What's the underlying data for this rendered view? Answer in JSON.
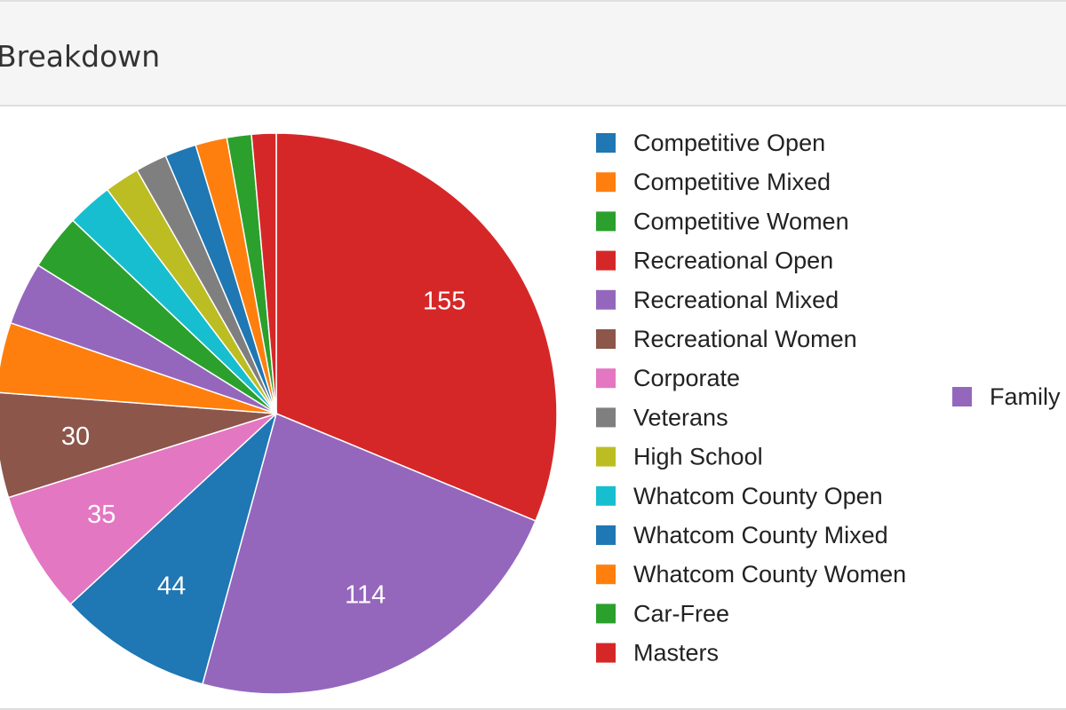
{
  "panel": {
    "title": "Breakdown"
  },
  "chart_data": {
    "type": "pie",
    "title": "Breakdown",
    "start_angle_deg": 0,
    "direction": "clockwise",
    "slices": [
      {
        "name": "Recreational Open",
        "value": 155,
        "color": "#d62728",
        "label": "155"
      },
      {
        "name": "Recreational Mixed",
        "value": 114,
        "color": "#9467bd",
        "label": "114"
      },
      {
        "name": "Competitive Open",
        "value": 44,
        "color": "#1f77b4",
        "label": "44"
      },
      {
        "name": "Corporate",
        "value": 35,
        "color": "#e377c2",
        "label": "35"
      },
      {
        "name": "Recreational Women",
        "value": 30,
        "color": "#8c564b",
        "label": "30"
      },
      {
        "name": "Competitive Mixed",
        "value": 20,
        "color": "#ff7f0e",
        "label": ""
      },
      {
        "name": "Family",
        "value": 18,
        "color": "#9467bd",
        "label": ""
      },
      {
        "name": "Competitive Women",
        "value": 16,
        "color": "#2ca02c",
        "label": ""
      },
      {
        "name": "Whatcom County Open",
        "value": 13,
        "color": "#17becf",
        "label": ""
      },
      {
        "name": "High School",
        "value": 10,
        "color": "#bcbd22",
        "label": ""
      },
      {
        "name": "Veterans",
        "value": 9,
        "color": "#7f7f7f",
        "label": ""
      },
      {
        "name": "Whatcom County Mixed",
        "value": 9,
        "color": "#1f77b4",
        "label": ""
      },
      {
        "name": "Whatcom County Women",
        "value": 9,
        "color": "#ff7f0e",
        "label": ""
      },
      {
        "name": "Car-Free",
        "value": 7,
        "color": "#2ca02c",
        "label": ""
      },
      {
        "name": "Masters",
        "value": 7,
        "color": "#d62728",
        "label": ""
      }
    ],
    "legend": {
      "placement": "right",
      "column_1": [
        {
          "name": "Competitive Open",
          "color": "#1f77b4"
        },
        {
          "name": "Competitive Mixed",
          "color": "#ff7f0e"
        },
        {
          "name": "Competitive Women",
          "color": "#2ca02c"
        },
        {
          "name": "Recreational Open",
          "color": "#d62728"
        },
        {
          "name": "Recreational Mixed",
          "color": "#9467bd"
        },
        {
          "name": "Recreational Women",
          "color": "#8c564b"
        },
        {
          "name": "Corporate",
          "color": "#e377c2"
        },
        {
          "name": "Veterans",
          "color": "#7f7f7f"
        },
        {
          "name": "High School",
          "color": "#bcbd22"
        },
        {
          "name": "Whatcom County Open",
          "color": "#17becf"
        },
        {
          "name": "Whatcom County Mixed",
          "color": "#1f77b4"
        },
        {
          "name": "Whatcom County Women",
          "color": "#ff7f0e"
        },
        {
          "name": "Car-Free",
          "color": "#2ca02c"
        },
        {
          "name": "Masters",
          "color": "#d62728"
        }
      ],
      "column_2": [
        {
          "name": "Family",
          "color": "#9467bd"
        }
      ]
    }
  }
}
